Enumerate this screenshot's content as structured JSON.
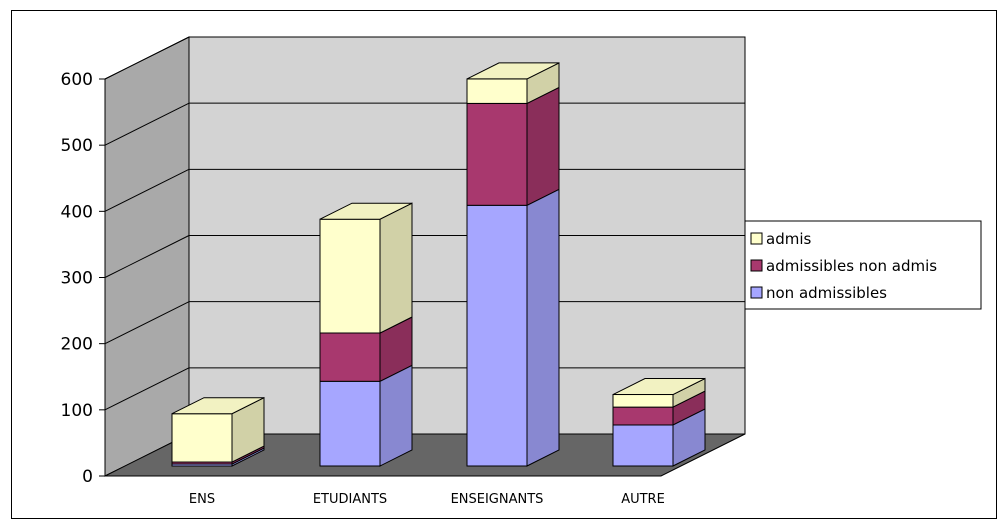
{
  "chart_data": {
    "type": "bar",
    "stacked": true,
    "three_d": true,
    "categories": [
      "ENS",
      "ETUDIANTS",
      "ENSEIGNANTS",
      "AUTRE"
    ],
    "series": [
      {
        "name": "non admissibles",
        "values": [
          3,
          128,
          394,
          62
        ],
        "color": "#a6a6ff"
      },
      {
        "name": "admissibles non admis",
        "values": [
          3,
          73,
          154,
          27
        ],
        "color": "#a8386e"
      },
      {
        "name": "admis",
        "values": [
          73,
          172,
          37,
          19
        ],
        "color": "#ffffcc"
      }
    ],
    "yticks": [
      "0",
      "100",
      "200",
      "300",
      "400",
      "500",
      "600"
    ],
    "ylim": [
      0,
      600
    ],
    "grid": true,
    "legend_position": "right",
    "title": "",
    "xlabel": "",
    "ylabel": ""
  }
}
